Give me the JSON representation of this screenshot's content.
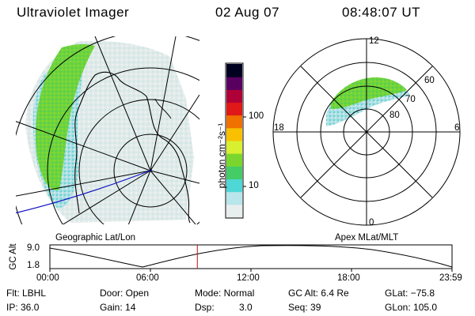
{
  "header": {
    "title": "Ultraviolet Imager",
    "date": "02 Aug 07",
    "time": "08:48:07 UT"
  },
  "left_panel": {
    "caption": "Geographic Lat/Lon"
  },
  "colorbar": {
    "unit_label": "photon cm⁻²s⁻¹",
    "tick_100": "100",
    "tick_10": "10",
    "scale": "log",
    "colors": [
      "#e8eeee",
      "#b8e6ea",
      "#4fd6d6",
      "#44cc66",
      "#7ad62e",
      "#d8f030",
      "#f8c000",
      "#f07000",
      "#e01818",
      "#b00038",
      "#580060",
      "#000020"
    ]
  },
  "right_panel": {
    "caption": "Apex MLat/MLT",
    "mlt_labels": {
      "top": "12",
      "bottom": "0",
      "left": "18",
      "right": "6"
    },
    "lat_labels": [
      "60",
      "70",
      "80"
    ]
  },
  "altitude_plot": {
    "ylabel": "GC Alt",
    "y_ticks": [
      "9.0",
      "1.8"
    ],
    "x_ticks": [
      "00:00",
      "06:00",
      "12:00",
      "18:00",
      "23:59"
    ],
    "current_time_hours": 8.8
  },
  "info": {
    "flt": "Flt: LBHL",
    "ip": "IP: 36.0",
    "door": "Door: Open",
    "gain": "Gain: 14",
    "mode": "Mode: Normal",
    "dsp_label": "Dsp:",
    "dsp_value": "3.0",
    "gc_alt": "GC Alt: 6.4 Re",
    "seq": "Seq: 39",
    "glat": "GLat: −75.8",
    "glon": "GLon: 105.0"
  }
}
